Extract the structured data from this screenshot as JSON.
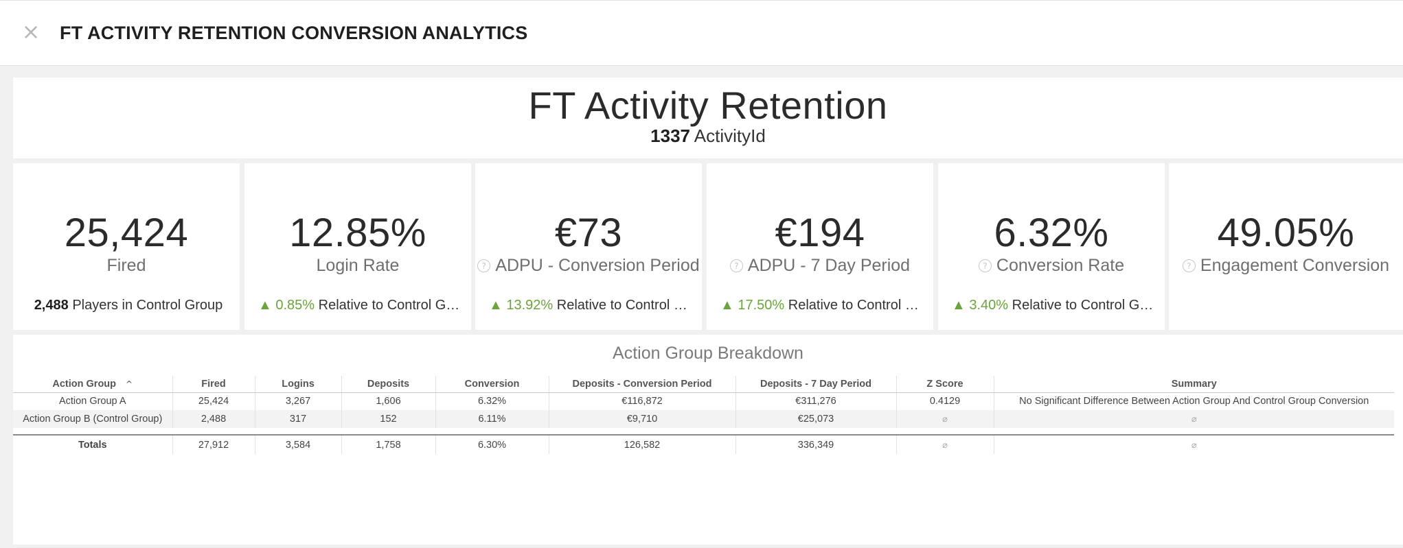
{
  "header": {
    "close_icon": "×",
    "title": "FT ACTIVITY RETENTION CONVERSION ANALYTICS"
  },
  "dashboard": {
    "title": "FT Activity Retention",
    "activity_id": "1337",
    "activity_label": "ActivityId"
  },
  "kpis": [
    {
      "value": "25,424",
      "label": "Fired",
      "help": false,
      "foot_strong": "2,488",
      "foot_text": "Players in Control Group"
    },
    {
      "value": "12.85%",
      "label": "Login Rate",
      "help": false,
      "foot_arrow": "▲",
      "foot_delta": "0.85%",
      "foot_text": "Relative to Control Group"
    },
    {
      "value": "€73",
      "label": "ADPU - Conversion Period",
      "help": true,
      "foot_arrow": "▲",
      "foot_delta": "13.92%",
      "foot_text": "Relative to Control Group"
    },
    {
      "value": "€194",
      "label": "ADPU - 7 Day Period",
      "help": true,
      "foot_arrow": "▲",
      "foot_delta": "17.50%",
      "foot_text": "Relative to Control Group"
    },
    {
      "value": "6.32%",
      "label": "Conversion Rate",
      "help": true,
      "foot_arrow": "▲",
      "foot_delta": "3.40%",
      "foot_text": "Relative to Control Group"
    },
    {
      "value": "49.05%",
      "label": "Engagement Conversion",
      "help": true
    }
  ],
  "colors": {
    "up": "#6aa43a",
    "help": "#c6c6c6"
  },
  "breakdown": {
    "title": "Action Group Breakdown",
    "sort_icon": "^",
    "null_symbol": "⌀",
    "columns": [
      "Action Group",
      "Fired",
      "Logins",
      "Deposits",
      "Conversion",
      "Deposits - Conversion Period",
      "Deposits - 7 Day Period",
      "Z Score",
      "Summary"
    ],
    "rows": [
      [
        "Action Group A",
        "25,424",
        "3,267",
        "1,606",
        "6.32%",
        "€116,872",
        "€311,276",
        "0.4129",
        "No Significant Difference Between Action Group And Control Group Conversion"
      ],
      [
        "Action Group B (Control Group)",
        "2,488",
        "317",
        "152",
        "6.11%",
        "€9,710",
        "€25,073",
        "⌀",
        "⌀"
      ]
    ],
    "totals": [
      "Totals",
      "27,912",
      "3,584",
      "1,758",
      "6.30%",
      "126,582",
      "336,349",
      "⌀",
      "⌀"
    ]
  }
}
